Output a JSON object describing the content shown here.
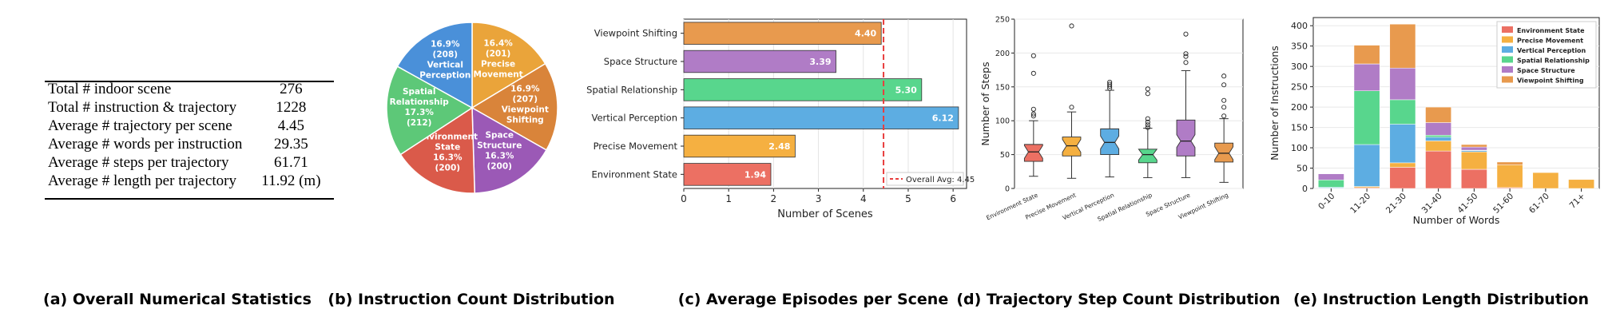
{
  "table_a": {
    "caption": "(a) Overall Numerical Statistics",
    "rows": [
      {
        "label": "Total # indoor scene",
        "value": "276"
      },
      {
        "label": "Total # instruction & trajectory",
        "value": "1228"
      },
      {
        "label": "Average # trajectory per scene",
        "value": "4.45"
      },
      {
        "label": "Average # words per instruction",
        "value": "29.35"
      },
      {
        "label": "Average # steps per trajectory",
        "value": "61.71"
      },
      {
        "label": "Average # length per trajectory",
        "value": "11.92 (m)"
      }
    ]
  },
  "chart_data": [
    {
      "type": "pie",
      "caption": "(b) Instruction Count Distribution",
      "slices": [
        {
          "name": "Precise Movement",
          "lines": [
            "Precise",
            "Movement"
          ],
          "value": 201,
          "pct": "16.4%",
          "count": "(201)",
          "color": "#EAA43A"
        },
        {
          "name": "Viewpoint Shifting",
          "lines": [
            "Viewpoint",
            "Shifting"
          ],
          "value": 207,
          "pct": "16.9%",
          "count": "(207)",
          "color": "#D9843A"
        },
        {
          "name": "Space Structure",
          "lines": [
            "Space",
            "Structure"
          ],
          "value": 200,
          "pct": "16.3%",
          "count": "(200)",
          "color": "#9B59B6"
        },
        {
          "name": "Environment State",
          "lines": [
            "Environment",
            "State"
          ],
          "value": 200,
          "pct": "16.3%",
          "count": "(200)",
          "color": "#DA5A4A"
        },
        {
          "name": "Spatial Relationship",
          "lines": [
            "Spatial",
            "Relationship"
          ],
          "value": 212,
          "pct": "17.3%",
          "count": "(212)",
          "color": "#5DC878"
        },
        {
          "name": "Vertical Perception",
          "lines": [
            "Vertical",
            "Perception"
          ],
          "value": 208,
          "pct": "16.9%",
          "count": "(208)",
          "color": "#4A90D9"
        }
      ]
    },
    {
      "type": "bar",
      "orientation": "horizontal",
      "caption": "(c) Average Episodes per Scene",
      "categories": [
        "Viewpoint Shifting",
        "Space Structure",
        "Spatial Relationship",
        "Vertical Perception",
        "Precise Movement",
        "Environment State"
      ],
      "values": [
        4.4,
        3.39,
        5.3,
        6.12,
        2.48,
        1.94
      ],
      "value_labels": [
        "4.40",
        "3.39",
        "5.30",
        "6.12",
        "2.48",
        "1.94"
      ],
      "colors": [
        "#E89A4E",
        "#B07CC6",
        "#58D68D",
        "#5DADE2",
        "#F5B041",
        "#EC7063"
      ],
      "xlabel": "Number of Scenes",
      "xlim": [
        0,
        6.3
      ],
      "xticks": [
        "0",
        "1",
        "2",
        "3",
        "4",
        "5",
        "6"
      ],
      "average": 4.45,
      "legend": "Overall Avg: 4.45",
      "legend_position": "lower-right",
      "avg_color": "#E83E3E"
    },
    {
      "type": "box",
      "caption": "(d) Trajectory Step Count Distribution",
      "categories": [
        "Environment State",
        "Precise Movement",
        "Vertical Perception",
        "Spatial Relationship",
        "Space Structure",
        "Viewpoint Shifting"
      ],
      "colors": [
        "#EC7063",
        "#F5B041",
        "#5DADE2",
        "#58D68D",
        "#B07CC6",
        "#E89A4E"
      ],
      "ylabel": "Number of Steps",
      "ylim": [
        0,
        250
      ],
      "yticks": [
        "0",
        "50",
        "100",
        "150",
        "200",
        "250"
      ],
      "boxes": [
        {
          "whisker_low": 18,
          "q1": 40,
          "median": 54,
          "q3": 65,
          "whisker_high": 100,
          "outliers": [
            107,
            110,
            117,
            170,
            196
          ]
        },
        {
          "whisker_low": 15,
          "q1": 48,
          "median": 63,
          "q3": 76,
          "whisker_high": 113,
          "outliers": [
            120,
            240
          ]
        },
        {
          "whisker_low": 17,
          "q1": 50,
          "median": 68,
          "q3": 88,
          "whisker_high": 145,
          "outliers": [
            148,
            151,
            154,
            157
          ]
        },
        {
          "whisker_low": 16,
          "q1": 38,
          "median": 50,
          "q3": 58,
          "whisker_high": 89,
          "outliers": [
            90,
            94,
            98,
            103,
            140,
            147
          ]
        },
        {
          "whisker_low": 16,
          "q1": 48,
          "median": 70,
          "q3": 101,
          "whisker_high": 174,
          "outliers": [
            186,
            195,
            199,
            228
          ]
        },
        {
          "whisker_low": 9,
          "q1": 39,
          "median": 52,
          "q3": 67,
          "whisker_high": 103,
          "outliers": [
            107,
            120,
            130,
            153,
            166
          ]
        }
      ]
    },
    {
      "type": "bar",
      "stacked": true,
      "caption": "(e) Instruction Length Distribution",
      "categories": [
        "0-10",
        "11-20",
        "21-30",
        "31-40",
        "41-50",
        "51-60",
        "61-70",
        "71+"
      ],
      "series": [
        {
          "name": "Environment State",
          "color": "#EC7063",
          "values": [
            0,
            2,
            52,
            92,
            47,
            2,
            0,
            0
          ]
        },
        {
          "name": "Precise Movement",
          "color": "#F5B041",
          "values": [
            1,
            3,
            11,
            25,
            43,
            56,
            39,
            22
          ]
        },
        {
          "name": "Vertical Perception",
          "color": "#5DADE2",
          "values": [
            2,
            103,
            95,
            9,
            3,
            0,
            0,
            0
          ]
        },
        {
          "name": "Spatial Relationship",
          "color": "#58D68D",
          "values": [
            18,
            132,
            60,
            5,
            1,
            0,
            0,
            0
          ]
        },
        {
          "name": "Space Structure",
          "color": "#B07CC6",
          "values": [
            15,
            66,
            78,
            31,
            8,
            0,
            0,
            0
          ]
        },
        {
          "name": "Viewpoint Shifting",
          "color": "#E89A4E",
          "values": [
            0,
            46,
            108,
            38,
            6,
            7,
            0,
            0
          ]
        }
      ],
      "xlabel": "Number of Words",
      "ylabel": "Number of Instructions",
      "ylim": [
        0,
        420
      ],
      "yticks": [
        "0",
        "50",
        "100",
        "150",
        "200",
        "250",
        "300",
        "350",
        "400"
      ],
      "legend_position": "top-right"
    }
  ]
}
